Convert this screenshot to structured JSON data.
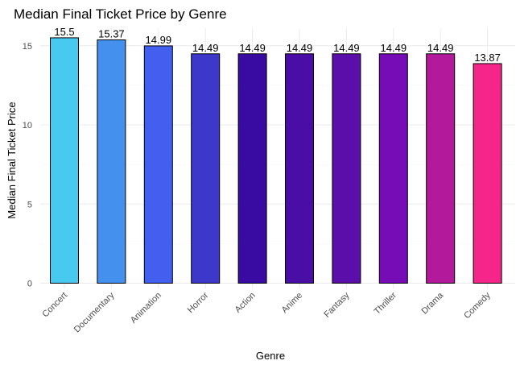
{
  "chart_data": {
    "type": "bar",
    "title": "Median Final Ticket Price by Genre",
    "xlabel": "Genre",
    "ylabel": "Median Final Ticket Price",
    "categories": [
      "Concert",
      "Documentary",
      "Animation",
      "Horror",
      "Action",
      "Anime",
      "Fantasy",
      "Thriller",
      "Drama",
      "Comedy"
    ],
    "values": [
      15.5,
      15.37,
      14.99,
      14.49,
      14.49,
      14.49,
      14.49,
      14.49,
      14.49,
      13.87
    ],
    "data_labels": [
      "15.5",
      "15.37",
      "14.99",
      "14.49",
      "14.49",
      "14.49",
      "14.49",
      "14.49",
      "14.49",
      "13.87"
    ],
    "colors": [
      "#48c9f0",
      "#4390ef",
      "#425ff0",
      "#3d38c9",
      "#390ba3",
      "#4a0ea6",
      "#5a0eaa",
      "#750cb5",
      "#b31a9b",
      "#f5258a"
    ],
    "yticks": [
      0,
      5,
      10,
      15
    ],
    "ytick_labels": [
      "0",
      "5",
      "10",
      "15"
    ],
    "ylim": [
      0,
      15.5
    ],
    "grid": true,
    "legend": "none"
  }
}
